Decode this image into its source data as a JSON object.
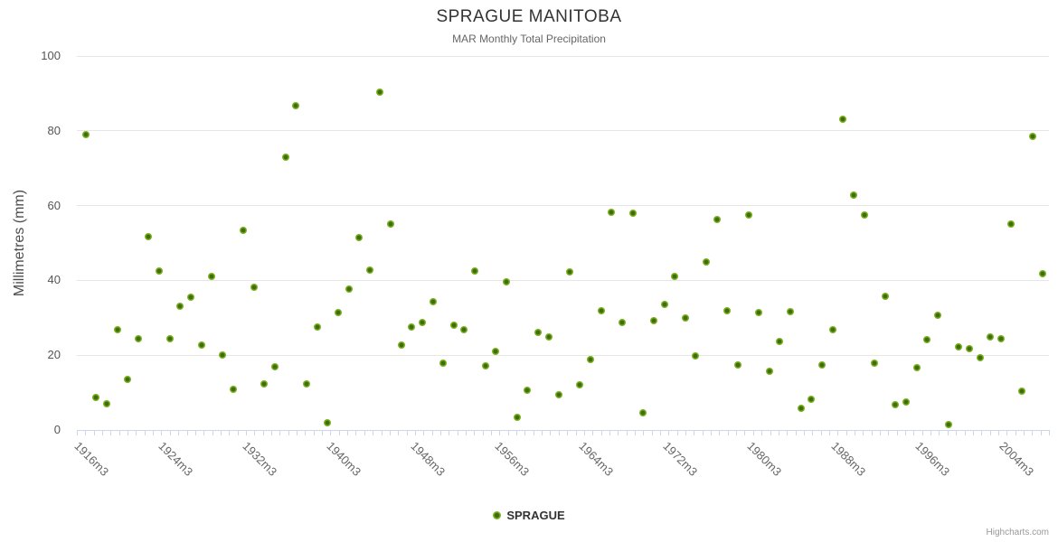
{
  "header": {
    "title": "SPRAGUE MANITOBA",
    "subtitle": "MAR Monthly Total Precipitation"
  },
  "legend": {
    "label": "SPRAGUE"
  },
  "credits": {
    "label": "Highcharts.com"
  },
  "colors": {
    "marker_outer": "#7ab122",
    "marker_core": "#3f6d08",
    "gridline": "#e6e6e6",
    "axis_tick": "#ccd6eb",
    "title_text": "#333333",
    "subtitle_text": "#666666",
    "label_text": "#666666"
  },
  "chart_data": {
    "type": "scatter",
    "title": "SPRAGUE MANITOBA",
    "subtitle": "MAR Monthly Total Precipitation",
    "xlabel": "",
    "ylabel": "Millimetres (mm)",
    "ylim": [
      0,
      100
    ],
    "y_ticks": [
      0,
      20,
      40,
      60,
      80,
      100
    ],
    "grid": "horizontal",
    "legend_position": "bottom",
    "x_tick_labels": [
      "1916m3",
      "1924m3",
      "1932m3",
      "1940m3",
      "1948m3",
      "1956m3",
      "1964m3",
      "1972m3",
      "1980m3",
      "1988m3",
      "1996m3",
      "2004m3"
    ],
    "x_label_step_years": 8,
    "series": [
      {
        "name": "SPRAGUE",
        "color": "#7ab122",
        "x_start_year": 1916,
        "x_suffix": "m3",
        "years": [
          1916,
          1917,
          1918,
          1919,
          1920,
          1921,
          1922,
          1923,
          1924,
          1925,
          1926,
          1927,
          1928,
          1929,
          1930,
          1931,
          1932,
          1933,
          1934,
          1935,
          1936,
          1937,
          1938,
          1939,
          1940,
          1941,
          1942,
          1943,
          1944,
          1945,
          1946,
          1947,
          1948,
          1949,
          1950,
          1951,
          1952,
          1953,
          1954,
          1955,
          1956,
          1957,
          1958,
          1959,
          1960,
          1961,
          1962,
          1963,
          1964,
          1965,
          1966,
          1967,
          1968,
          1969,
          1970,
          1971,
          1972,
          1973,
          1974,
          1975,
          1976,
          1977,
          1978,
          1979,
          1980,
          1981,
          1982,
          1983,
          1984,
          1985,
          1986,
          1987,
          1988,
          1989,
          1990,
          1991,
          1992,
          1993,
          1994,
          1995,
          1996,
          1997,
          1998,
          1999,
          2000,
          2001,
          2002,
          2003,
          2004,
          2005,
          2006,
          2007
        ],
        "values": [
          79.0,
          8.8,
          7.0,
          26.9,
          13.5,
          24.5,
          51.8,
          42.6,
          24.5,
          33.2,
          35.6,
          22.8,
          41.0,
          20.1,
          10.8,
          53.5,
          38.1,
          12.4,
          16.9,
          73.0,
          86.6,
          12.4,
          27.6,
          1.9,
          31.3,
          37.7,
          51.4,
          42.7,
          90.4,
          55.1,
          22.6,
          27.6,
          28.8,
          34.2,
          17.8,
          28.1,
          26.9,
          42.6,
          17.1,
          20.9,
          39.6,
          3.5,
          10.6,
          26.1,
          24.8,
          9.4,
          42.2,
          12.0,
          18.9,
          31.8,
          58.3,
          28.8,
          57.9,
          4.7,
          29.2,
          33.6,
          41.0,
          29.9,
          19.9,
          44.9,
          56.3,
          31.8,
          17.5,
          57.4,
          31.3,
          15.7,
          23.7,
          31.6,
          5.9,
          8.3,
          17.3,
          26.7,
          83.1,
          62.8,
          57.4,
          17.9,
          35.7,
          6.7,
          7.6,
          16.6,
          24.1,
          30.6,
          1.4,
          22.3,
          21.8,
          19.4,
          24.9,
          24.3,
          55.1,
          10.4,
          78.4,
          41.9
        ]
      }
    ]
  }
}
